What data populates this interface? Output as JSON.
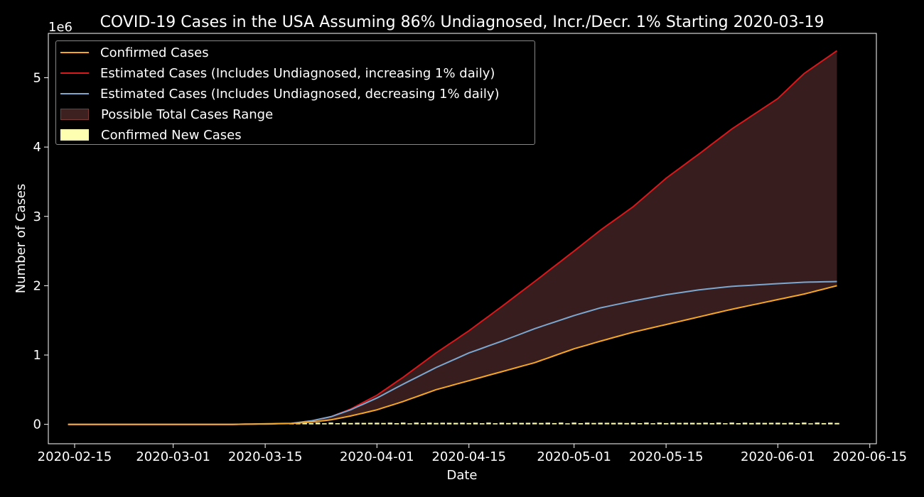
{
  "chart_data": {
    "type": "line",
    "title": "COVID-19 Cases in the USA Assuming 86% Undiagnosed, Incr./Decr. 1% Starting 2020-03-19",
    "xlabel": "Date",
    "ylabel": "Number of Cases",
    "y_offset_label": "1e6",
    "xlim": [
      "2020-02-11",
      "2020-06-16"
    ],
    "ylim": [
      -0.28,
      5.64
    ],
    "y_unit_multiplier": 1000000,
    "x_ticks": [
      "2020-02-15",
      "2020-03-01",
      "2020-03-15",
      "2020-04-01",
      "2020-04-15",
      "2020-05-01",
      "2020-05-15",
      "2020-06-01",
      "2020-06-15"
    ],
    "y_ticks": [
      0,
      1,
      2,
      3,
      4,
      5
    ],
    "y_tick_labels": [
      "0",
      "1",
      "2",
      "3",
      "4",
      "5"
    ],
    "grid": false,
    "legend_position": "top-left",
    "colors": {
      "background": "#000000",
      "confirmed": "#f5a623",
      "upper": "#d7191c",
      "lower": "#7ba7d1",
      "range_fill": "#3d2020",
      "range_edge": "#7a3a36",
      "new_cases": "#ffffb2"
    },
    "series": [
      {
        "name": "Confirmed Cases",
        "color": "#f5a623",
        "points": [
          [
            "2020-02-14",
            0.0
          ],
          [
            "2020-03-10",
            0.0
          ],
          [
            "2020-03-15",
            0.004
          ],
          [
            "2020-03-19",
            0.013
          ],
          [
            "2020-03-22",
            0.033
          ],
          [
            "2020-03-25",
            0.065
          ],
          [
            "2020-03-28",
            0.12
          ],
          [
            "2020-04-01",
            0.21
          ],
          [
            "2020-04-05",
            0.33
          ],
          [
            "2020-04-10",
            0.5
          ],
          [
            "2020-04-15",
            0.63
          ],
          [
            "2020-04-20",
            0.76
          ],
          [
            "2020-04-25",
            0.89
          ],
          [
            "2020-05-01",
            1.09
          ],
          [
            "2020-05-05",
            1.2
          ],
          [
            "2020-05-10",
            1.33
          ],
          [
            "2020-05-15",
            1.44
          ],
          [
            "2020-05-20",
            1.55
          ],
          [
            "2020-05-25",
            1.66
          ],
          [
            "2020-06-01",
            1.8
          ],
          [
            "2020-06-05",
            1.88
          ],
          [
            "2020-06-10",
            2.0
          ]
        ]
      },
      {
        "name": "Estimated Cases (Includes Undiagnosed, increasing 1% daily)",
        "color": "#d7191c",
        "points": [
          [
            "2020-02-14",
            0.0
          ],
          [
            "2020-03-10",
            0.0
          ],
          [
            "2020-03-15",
            0.008
          ],
          [
            "2020-03-19",
            0.015
          ],
          [
            "2020-03-22",
            0.05
          ],
          [
            "2020-03-25",
            0.11
          ],
          [
            "2020-03-28",
            0.22
          ],
          [
            "2020-04-01",
            0.42
          ],
          [
            "2020-04-05",
            0.68
          ],
          [
            "2020-04-10",
            1.03
          ],
          [
            "2020-04-15",
            1.35
          ],
          [
            "2020-04-20",
            1.7
          ],
          [
            "2020-04-25",
            2.06
          ],
          [
            "2020-05-01",
            2.5
          ],
          [
            "2020-05-05",
            2.8
          ],
          [
            "2020-05-10",
            3.14
          ],
          [
            "2020-05-15",
            3.55
          ],
          [
            "2020-05-20",
            3.9
          ],
          [
            "2020-05-25",
            4.26
          ],
          [
            "2020-06-01",
            4.7
          ],
          [
            "2020-06-05",
            5.06
          ],
          [
            "2020-06-10",
            5.39
          ]
        ]
      },
      {
        "name": "Estimated Cases (Includes Undiagnosed, decreasing 1% daily)",
        "color": "#7ba7d1",
        "points": [
          [
            "2020-02-14",
            0.0
          ],
          [
            "2020-03-10",
            0.0
          ],
          [
            "2020-03-15",
            0.008
          ],
          [
            "2020-03-19",
            0.015
          ],
          [
            "2020-03-22",
            0.05
          ],
          [
            "2020-03-25",
            0.11
          ],
          [
            "2020-03-28",
            0.21
          ],
          [
            "2020-04-01",
            0.38
          ],
          [
            "2020-04-05",
            0.58
          ],
          [
            "2020-04-10",
            0.82
          ],
          [
            "2020-04-15",
            1.03
          ],
          [
            "2020-04-20",
            1.2
          ],
          [
            "2020-04-25",
            1.38
          ],
          [
            "2020-05-01",
            1.57
          ],
          [
            "2020-05-05",
            1.68
          ],
          [
            "2020-05-10",
            1.78
          ],
          [
            "2020-05-15",
            1.87
          ],
          [
            "2020-05-20",
            1.94
          ],
          [
            "2020-05-25",
            1.99
          ],
          [
            "2020-06-01",
            2.03
          ],
          [
            "2020-06-05",
            2.05
          ],
          [
            "2020-06-10",
            2.06
          ]
        ]
      }
    ],
    "range_fill": {
      "name": "Possible Total Cases Range",
      "between": [
        "Estimated Cases (Includes Undiagnosed, increasing 1% daily)",
        "Confirmed Cases"
      ]
    },
    "bars": {
      "name": "Confirmed New Cases",
      "color": "#ffffb2",
      "start": "2020-03-19",
      "end": "2020-06-10",
      "typical_value": 0.025
    },
    "legend": [
      {
        "label": "Confirmed Cases",
        "kind": "line",
        "color": "#f5a623"
      },
      {
        "label": "Estimated Cases (Includes Undiagnosed, increasing 1% daily)",
        "kind": "line",
        "color": "#d7191c"
      },
      {
        "label": "Estimated Cases (Includes Undiagnosed, decreasing 1% daily)",
        "kind": "line",
        "color": "#7ba7d1"
      },
      {
        "label": "Possible Total Cases Range",
        "kind": "patch",
        "color": "#3d2020",
        "edge": "#7a3a36"
      },
      {
        "label": "Confirmed New Cases",
        "kind": "patch",
        "color": "#ffffb2",
        "edge": "#ffffb2"
      }
    ]
  }
}
